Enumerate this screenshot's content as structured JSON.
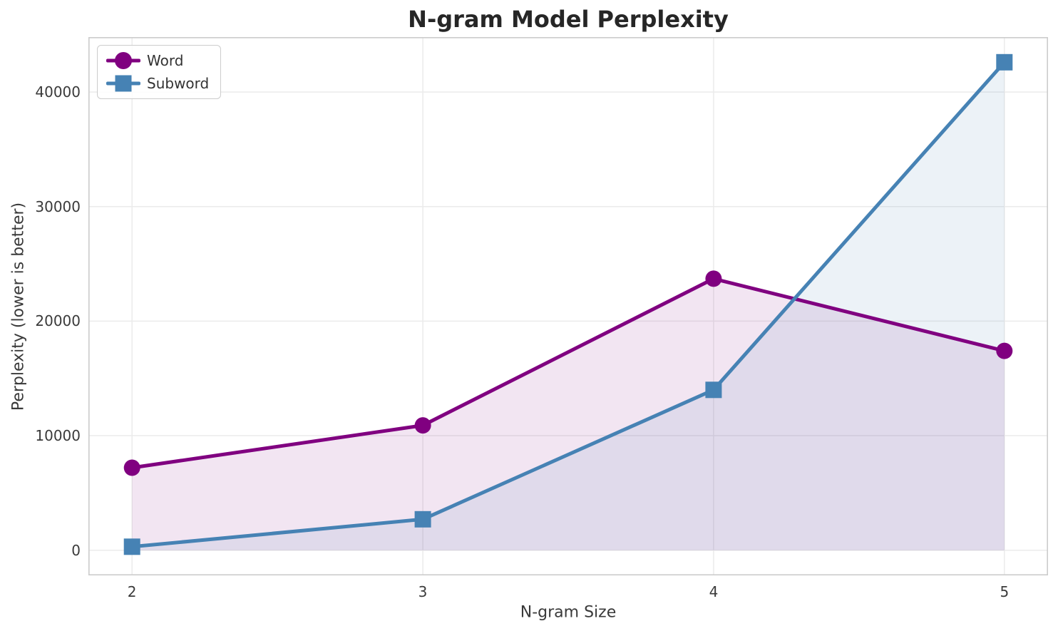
{
  "chart_data": {
    "type": "line",
    "title": "N-gram Model Perplexity",
    "xlabel": "N-gram Size",
    "ylabel": "Perplexity (lower is better)",
    "x": [
      2,
      3,
      4,
      5
    ],
    "xtick_labels": [
      "2",
      "3",
      "4",
      "5"
    ],
    "yticks": [
      0,
      10000,
      20000,
      30000,
      40000
    ],
    "ytick_labels": [
      "0",
      "10000",
      "20000",
      "30000",
      "40000"
    ],
    "xlim": [
      1.85,
      5.15
    ],
    "ylim": [
      -2200,
      44800
    ],
    "grid": true,
    "legend_position": "upper left",
    "baseline": 0,
    "series": [
      {
        "name": "Word",
        "marker": "circle",
        "color": "#800080",
        "fill_opacity": 0.1,
        "line_width": 5,
        "values": [
          7200,
          10900,
          23700,
          17400
        ]
      },
      {
        "name": "Subword",
        "marker": "square",
        "color": "#4682B4",
        "fill_opacity": 0.1,
        "line_width": 5,
        "values": [
          300,
          2700,
          14000,
          42600
        ]
      }
    ],
    "colors": {
      "grid": "#ebebeb",
      "spine": "#cccccc",
      "title_text": "#262626",
      "tick_text": "#3a3a3a"
    }
  }
}
